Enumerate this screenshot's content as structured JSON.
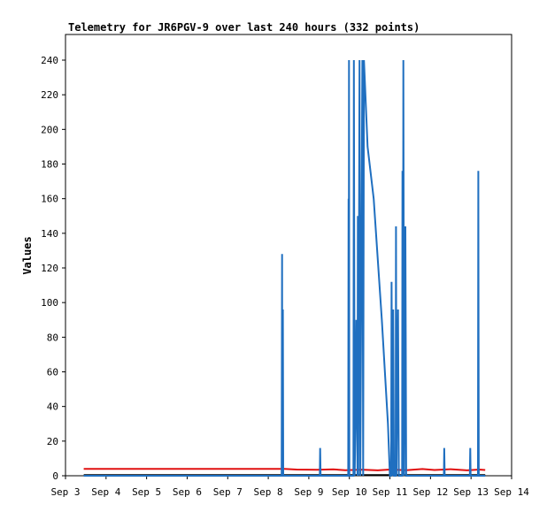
{
  "chart_data": {
    "type": "line",
    "title": "Telemetry for JR6PGV-9 over last 240 hours (332 points)",
    "xlabel": "",
    "ylabel": "Values",
    "xlim": [
      3.0,
      14.0
    ],
    "ylim": [
      0,
      250
    ],
    "x_ticks": [
      "Sep 3",
      "Sep 4",
      "Sep 5",
      "Sep 6",
      "Sep 7",
      "Sep 8",
      "Sep 9",
      "Sep 10",
      "Sep 11",
      "Sep 12",
      "Sep 13",
      "Sep 14"
    ],
    "y_ticks": [
      0,
      20,
      40,
      60,
      80,
      100,
      120,
      140,
      160,
      180,
      200,
      220,
      240
    ],
    "grid": false,
    "series": [
      {
        "color": "#000000",
        "points": [
          [
            3.45,
            0.5
          ],
          [
            13.35,
            0.5
          ]
        ]
      },
      {
        "color": "#e01010",
        "points": [
          [
            3.45,
            4
          ],
          [
            4.5,
            4
          ],
          [
            5.5,
            4
          ],
          [
            6.5,
            4
          ],
          [
            7.5,
            4
          ],
          [
            8.4,
            4
          ],
          [
            8.7,
            3.6
          ],
          [
            9.2,
            3.4
          ],
          [
            9.6,
            3.7
          ],
          [
            9.9,
            3.2
          ],
          [
            10.3,
            3.5
          ],
          [
            10.7,
            3.1
          ],
          [
            11.0,
            3.6
          ],
          [
            11.4,
            3.2
          ],
          [
            11.8,
            3.9
          ],
          [
            12.1,
            3.3
          ],
          [
            12.5,
            3.8
          ],
          [
            12.9,
            3.1
          ],
          [
            13.2,
            3.6
          ],
          [
            13.35,
            3.3
          ]
        ]
      },
      {
        "color": "#1f6fc0",
        "points": [
          [
            3.45,
            0
          ],
          [
            8.33,
            0
          ],
          [
            8.34,
            128
          ],
          [
            8.345,
            0
          ],
          [
            8.36,
            96
          ],
          [
            8.37,
            0
          ],
          [
            9.27,
            0
          ],
          [
            9.28,
            16
          ],
          [
            9.29,
            0
          ],
          [
            9.97,
            0
          ],
          [
            9.98,
            160
          ],
          [
            9.985,
            0
          ],
          [
            9.99,
            240
          ],
          [
            10.0,
            0
          ],
          [
            10.1,
            0
          ],
          [
            10.11,
            240
          ],
          [
            10.13,
            0
          ],
          [
            10.15,
            32
          ],
          [
            10.17,
            90
          ],
          [
            10.2,
            0
          ],
          [
            10.21,
            150
          ],
          [
            10.22,
            0
          ],
          [
            10.25,
            240
          ],
          [
            10.27,
            0
          ],
          [
            10.32,
            240
          ],
          [
            10.34,
            0
          ],
          [
            10.36,
            240
          ],
          [
            10.45,
            190
          ],
          [
            10.6,
            160
          ],
          [
            10.8,
            90
          ],
          [
            10.95,
            30
          ],
          [
            11.0,
            0
          ],
          [
            11.03,
            0
          ],
          [
            11.04,
            112
          ],
          [
            11.06,
            0
          ],
          [
            11.08,
            96
          ],
          [
            11.1,
            0
          ],
          [
            11.14,
            0
          ],
          [
            11.15,
            144
          ],
          [
            11.16,
            0
          ],
          [
            11.2,
            96
          ],
          [
            11.22,
            0
          ],
          [
            11.3,
            0
          ],
          [
            11.31,
            176
          ],
          [
            11.32,
            0
          ],
          [
            11.33,
            240
          ],
          [
            11.35,
            0
          ],
          [
            11.38,
            144
          ],
          [
            11.4,
            0
          ],
          [
            12.33,
            0
          ],
          [
            12.34,
            16
          ],
          [
            12.35,
            0
          ],
          [
            12.97,
            0
          ],
          [
            12.98,
            16
          ],
          [
            12.99,
            0
          ],
          [
            13.17,
            0
          ],
          [
            13.18,
            176
          ],
          [
            13.19,
            0
          ],
          [
            13.35,
            0
          ]
        ]
      }
    ]
  }
}
